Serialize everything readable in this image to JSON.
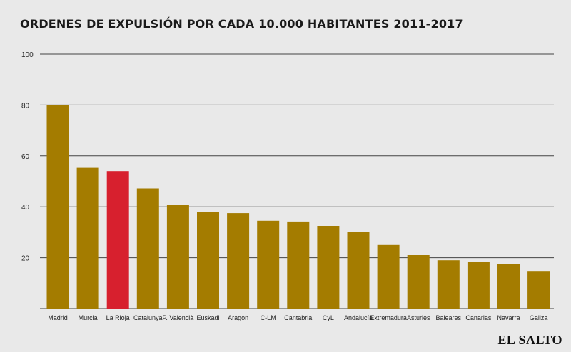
{
  "brand": "EL SALTO",
  "chart_data": {
    "type": "bar",
    "title": "ORDENES DE EXPULSIÓN POR CADA 10.000 HABITANTES 2011-2017",
    "xlabel": "",
    "ylabel": "",
    "ylim": [
      0,
      100
    ],
    "yticks": [
      20,
      40,
      60,
      80,
      100
    ],
    "grid": true,
    "categories": [
      "Madrid",
      "Murcia",
      "La Rioja",
      "Catalunya",
      "P. Valencià",
      "Euskadi",
      "Aragon",
      "C-LM",
      "Cantabria",
      "CyL",
      "Andalucía",
      "Extremadura",
      "Asturies",
      "Baleares",
      "Canarias",
      "Navarra",
      "Galiza"
    ],
    "values": [
      80,
      55.3,
      54,
      47.2,
      40.9,
      38,
      37.5,
      34.5,
      34.2,
      32.5,
      30.2,
      25,
      21,
      19,
      18.3,
      17.5,
      14.5
    ],
    "colors": {
      "default": "#a47c00",
      "highlight": "#d7202e",
      "highlight_category": "La Rioja",
      "grid": "#444444",
      "axis_text": "#222222"
    }
  }
}
